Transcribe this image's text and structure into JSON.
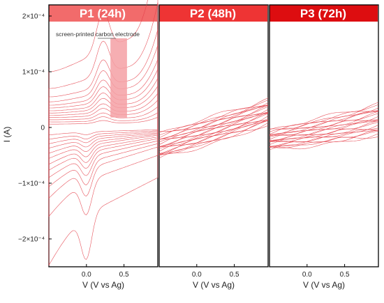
{
  "chart_data": [
    {
      "type": "line",
      "panel_label": "P1 (24h)",
      "header_color": "#f26b6b",
      "line_color": "#e4404a",
      "xlabel": "V (V vs Ag)",
      "ylabel": "I (A)",
      "xlim": [
        -0.5,
        0.95
      ],
      "ylim": [
        -0.00025,
        0.00022
      ],
      "x_ticks": [
        0.0,
        0.5
      ],
      "x_tick_labels": [
        "0.0",
        "0.5"
      ],
      "y_ticks": [
        0.0002,
        0.0001,
        0,
        -0.0001,
        -0.0002
      ],
      "y_tick_labels": [
        "2×10⁻⁴",
        "1×10⁻⁴",
        "0",
        "−1×10⁻⁴",
        "−2×10⁻⁴"
      ],
      "grid": false,
      "annotation": {
        "text": "screen-printed carbon electrode",
        "x_range": [
          0.32,
          0.54
        ],
        "y_range": [
          1.8e-05,
          0.00016
        ]
      },
      "cv_curves": [
        {
          "scale": 1.6e-05,
          "ox_peak": 5e-06,
          "red_peak": 5e-06,
          "i_start_upper": 6e-06,
          "i_start_lower": -1e-05,
          "i_end_upper": 1e-05,
          "i_end_lower": -4e-06
        },
        {
          "scale": 2.4e-05,
          "ox_peak": 8e-06,
          "red_peak": 8e-06,
          "i_start_upper": 1e-05,
          "i_start_lower": -1.6e-05,
          "i_end_upper": 1.4e-05,
          "i_end_lower": -6e-06
        },
        {
          "scale": 3.3e-05,
          "ox_peak": 1e-05,
          "red_peak": 1e-05,
          "i_start_upper": 1.4e-05,
          "i_start_lower": -2.2e-05,
          "i_end_upper": 2e-05,
          "i_end_lower": -8e-06
        },
        {
          "scale": 4.2e-05,
          "ox_peak": 1.3e-05,
          "red_peak": 1.3e-05,
          "i_start_upper": 1.8e-05,
          "i_start_lower": -2.8e-05,
          "i_end_upper": 2.7e-05,
          "i_end_lower": -1e-05
        },
        {
          "scale": 5.2e-05,
          "ox_peak": 1.6e-05,
          "red_peak": 1.6e-05,
          "i_start_upper": 2.2e-05,
          "i_start_lower": -3.5e-05,
          "i_end_upper": 3.4e-05,
          "i_end_lower": -1.2e-05
        },
        {
          "scale": 6.2e-05,
          "ox_peak": 2e-05,
          "red_peak": 2e-05,
          "i_start_upper": 2.6e-05,
          "i_start_lower": -4.2e-05,
          "i_end_upper": 4.2e-05,
          "i_end_lower": -1.4e-05
        },
        {
          "scale": 7.3e-05,
          "ox_peak": 2.4e-05,
          "red_peak": 2.4e-05,
          "i_start_upper": 3e-05,
          "i_start_lower": -5e-05,
          "i_end_upper": 5e-05,
          "i_end_lower": -1.7e-05
        },
        {
          "scale": 8.5e-05,
          "ox_peak": 2.8e-05,
          "red_peak": 2.8e-05,
          "i_start_upper": 3.5e-05,
          "i_start_lower": -5.8e-05,
          "i_end_upper": 6e-05,
          "i_end_lower": -2e-05
        },
        {
          "scale": 0.0001,
          "ox_peak": 3.3e-05,
          "red_peak": 3.3e-05,
          "i_start_upper": 4e-05,
          "i_start_lower": -6.8e-05,
          "i_end_upper": 7e-05,
          "i_end_lower": -2.4e-05
        },
        {
          "scale": 0.00012,
          "ox_peak": 4e-05,
          "red_peak": 4e-05,
          "i_start_upper": 4.6e-05,
          "i_start_lower": -8e-05,
          "i_end_upper": 8.5e-05,
          "i_end_lower": -2.9e-05
        },
        {
          "scale": 0.000145,
          "ox_peak": 4.8e-05,
          "red_peak": 4.8e-05,
          "i_start_upper": 5.5e-05,
          "i_start_lower": -9.5e-05,
          "i_end_upper": 0.0001,
          "i_end_lower": -3.5e-05
        },
        {
          "scale": 0.00018,
          "ox_peak": 6e-05,
          "red_peak": 6e-05,
          "i_start_upper": 7e-05,
          "i_start_lower": -0.00012,
          "i_end_upper": 0.00013,
          "i_end_lower": -5e-05
        },
        {
          "scale": 0.00026,
          "ox_peak": 7e-05,
          "red_peak": 8e-05,
          "i_start_upper": 0.0001,
          "i_start_lower": -0.00019,
          "i_end_upper": 0.00019,
          "i_end_lower": -9e-05
        }
      ]
    },
    {
      "type": "line",
      "panel_label": "P2 (48h)",
      "header_color": "#ee3434",
      "line_color": "#e4404a",
      "xlabel": "V (V vs Ag)",
      "xlim": [
        -0.5,
        0.95
      ],
      "ylim": [
        -0.00025,
        0.00022
      ],
      "x_ticks": [
        0.0,
        0.5
      ],
      "x_tick_labels": [
        "0.0",
        "0.5"
      ],
      "grid": false,
      "sweep_band": {
        "v_start": -0.5,
        "v_end": 0.95,
        "i_start_range": [
          -5.5e-05,
          -1e-05
        ],
        "i_end_range": [
          5e-06,
          5e-05
        ],
        "n_curves": 22
      }
    },
    {
      "type": "line",
      "panel_label": "P3 (72h)",
      "header_color": "#dd0d10",
      "line_color": "#e4404a",
      "xlabel": "V (V vs Ag)",
      "xlim": [
        -0.5,
        0.95
      ],
      "ylim": [
        -0.00025,
        0.00022
      ],
      "x_ticks": [
        0.0,
        0.5
      ],
      "x_tick_labels": [
        "0.0",
        "0.5"
      ],
      "grid": false,
      "sweep_band": {
        "v_start": -0.5,
        "v_end": 0.95,
        "i_start_range": [
          -4e-05,
          -5e-06
        ],
        "i_end_range": [
          -1.5e-05,
          4.2e-05
        ],
        "n_curves": 22
      }
    }
  ]
}
